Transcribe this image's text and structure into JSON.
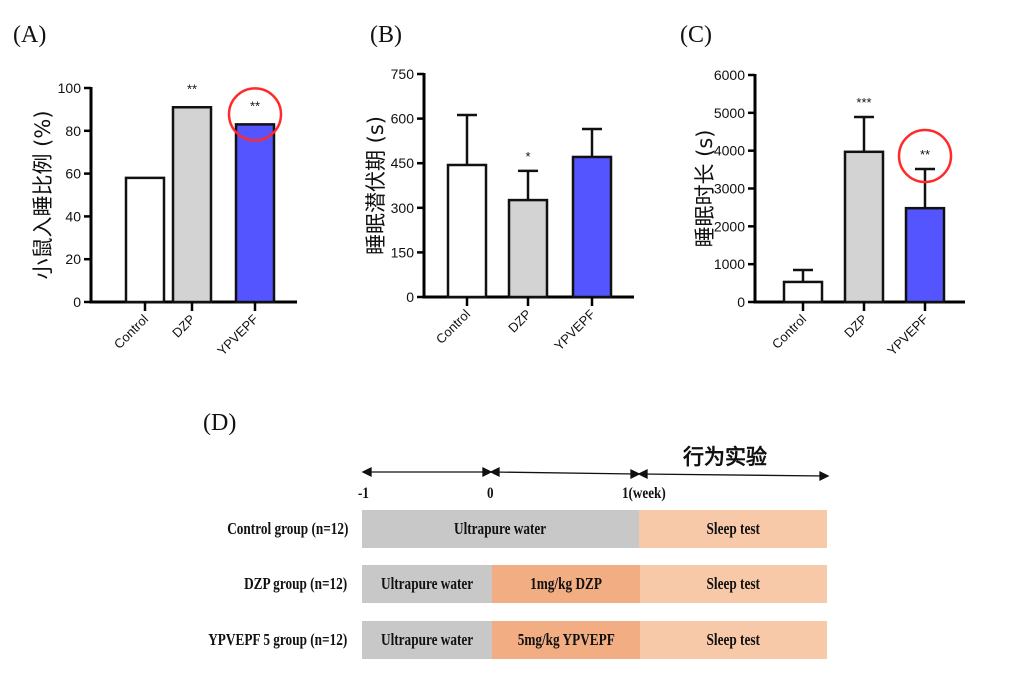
{
  "panels": {
    "A": "(A)",
    "B": "(B)",
    "C": "(C)",
    "D": "(D)"
  },
  "chart_data": [
    {
      "id": "A",
      "type": "bar",
      "title": "",
      "xlabel": "",
      "ylabel": "小鼠入睡比例 (%)",
      "categories": [
        "Control",
        "DZP",
        "YPVEPF"
      ],
      "values": [
        58,
        91,
        83
      ],
      "errors": null,
      "colors": [
        "#ffffff",
        "#d3d3d3",
        "#5555ff"
      ],
      "significance": [
        "",
        "**",
        "**"
      ],
      "highlighted": [
        false,
        false,
        true
      ],
      "ylim": [
        0,
        100
      ],
      "yticks": [
        0,
        20,
        40,
        60,
        80,
        100
      ],
      "grid": false
    },
    {
      "id": "B",
      "type": "bar",
      "title": "",
      "xlabel": "",
      "ylabel": "睡眠潜伏期 (s)",
      "categories": [
        "Control",
        "DZP",
        "YPVEPF"
      ],
      "values": [
        444,
        326,
        471
      ],
      "error_upper": [
        612,
        424,
        565
      ],
      "colors": [
        "#ffffff",
        "#d3d3d3",
        "#5555ff"
      ],
      "significance": [
        "",
        "*",
        ""
      ],
      "highlighted": [
        false,
        false,
        false
      ],
      "ylim": [
        0,
        750
      ],
      "yticks": [
        0,
        150,
        300,
        450,
        600,
        750
      ],
      "grid": false
    },
    {
      "id": "C",
      "type": "bar",
      "title": "",
      "xlabel": "",
      "ylabel": "睡眠时长 (s)",
      "categories": [
        "Control",
        "DZP",
        "YPVEPF"
      ],
      "values": [
        530,
        3970,
        2480
      ],
      "error_upper": [
        845,
        4890,
        3515
      ],
      "colors": [
        "#ffffff",
        "#d3d3d3",
        "#5555ff"
      ],
      "significance": [
        "",
        "***",
        "**"
      ],
      "highlighted": [
        false,
        false,
        true
      ],
      "ylim": [
        0,
        6000
      ],
      "yticks": [
        0,
        1000,
        2000,
        3000,
        4000,
        5000,
        6000
      ],
      "grid": false
    }
  ],
  "timeline": {
    "phase_title": "行为实验",
    "ticks": [
      "-1",
      "0",
      "1(week)"
    ],
    "colors": {
      "water": "#c8c8c8",
      "treatment": "#f2ae82",
      "test": "#f8c9a8",
      "highlight": "#ff2a2a"
    },
    "groups": [
      {
        "label": "Control group (n=12)",
        "segments": [
          {
            "text": "Ultrapure water",
            "kind": "water"
          },
          {
            "text": "Sleep test",
            "kind": "test"
          }
        ]
      },
      {
        "label": "DZP group (n=12)",
        "segments": [
          {
            "text": "Ultrapure water",
            "kind": "water"
          },
          {
            "text": "1mg/kg DZP",
            "kind": "treatment"
          },
          {
            "text": "Sleep test",
            "kind": "test"
          }
        ]
      },
      {
        "label": "YPVEPF 5 group (n=12)",
        "segments": [
          {
            "text": "Ultrapure water",
            "kind": "water"
          },
          {
            "text": "5mg/kg YPVEPF",
            "kind": "treatment"
          },
          {
            "text": "Sleep test",
            "kind": "test"
          }
        ]
      }
    ]
  }
}
